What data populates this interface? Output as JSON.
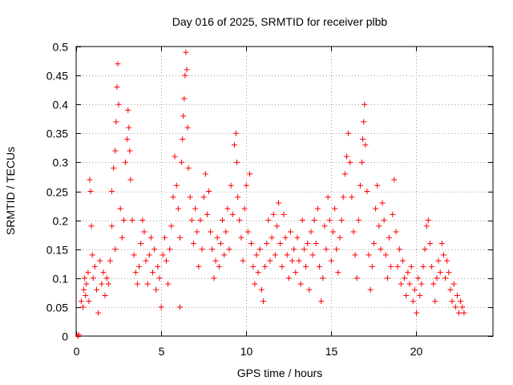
{
  "chart_data": {
    "type": "scatter",
    "title": "Day 016 of 2025, SRMTID for receiver plbb",
    "xlabel": "GPS time / hours",
    "ylabel": "SRMTID / TECUs",
    "xlim": [
      0,
      24.5
    ],
    "ylim": [
      0,
      0.5
    ],
    "xticks": [
      0,
      5,
      10,
      15,
      20
    ],
    "xtick_labels": [
      "0",
      "5",
      "10",
      "15",
      "20"
    ],
    "yticks": [
      0,
      0.05,
      0.1,
      0.15,
      0.2,
      0.25,
      0.3,
      0.35,
      0.4,
      0.45,
      0.5
    ],
    "ytick_labels": [
      "0",
      "0.05",
      "0.1",
      "0.15",
      "0.2",
      "0.25",
      "0.3",
      "0.35",
      "0.4",
      "0.45",
      "0.5"
    ],
    "grid": true,
    "marker": "+",
    "color": "#ff0000",
    "series": [
      {
        "name": "SRMTID",
        "points": [
          [
            0.1,
            0.0
          ],
          [
            0.15,
            0.002
          ],
          [
            0.3,
            0.06
          ],
          [
            0.4,
            0.05
          ],
          [
            0.45,
            0.08
          ],
          [
            0.5,
            0.1
          ],
          [
            0.55,
            0.07
          ],
          [
            0.6,
            0.09
          ],
          [
            0.7,
            0.11
          ],
          [
            0.75,
            0.06
          ],
          [
            0.8,
            0.27
          ],
          [
            0.85,
            0.25
          ],
          [
            0.9,
            0.19
          ],
          [
            0.95,
            0.14
          ],
          [
            1.0,
            0.1
          ],
          [
            1.1,
            0.12
          ],
          [
            1.2,
            0.08
          ],
          [
            1.3,
            0.04
          ],
          [
            1.4,
            0.13
          ],
          [
            1.5,
            0.09
          ],
          [
            1.6,
            0.11
          ],
          [
            1.7,
            0.07
          ],
          [
            1.8,
            0.1
          ],
          [
            1.9,
            0.09
          ],
          [
            2.0,
            0.13
          ],
          [
            2.1,
            0.19
          ],
          [
            2.1,
            0.25
          ],
          [
            2.2,
            0.29
          ],
          [
            2.3,
            0.15
          ],
          [
            2.3,
            0.32
          ],
          [
            2.35,
            0.37
          ],
          [
            2.4,
            0.43
          ],
          [
            2.45,
            0.47
          ],
          [
            2.5,
            0.4
          ],
          [
            2.6,
            0.22
          ],
          [
            2.7,
            0.17
          ],
          [
            2.8,
            0.2
          ],
          [
            2.9,
            0.3
          ],
          [
            3.0,
            0.34
          ],
          [
            3.05,
            0.39
          ],
          [
            3.1,
            0.36
          ],
          [
            3.15,
            0.32
          ],
          [
            3.2,
            0.27
          ],
          [
            3.3,
            0.2
          ],
          [
            3.4,
            0.14
          ],
          [
            3.5,
            0.11
          ],
          [
            3.6,
            0.09
          ],
          [
            3.7,
            0.12
          ],
          [
            3.8,
            0.16
          ],
          [
            3.9,
            0.2
          ],
          [
            4.0,
            0.18
          ],
          [
            4.1,
            0.13
          ],
          [
            4.2,
            0.09
          ],
          [
            4.3,
            0.14
          ],
          [
            4.4,
            0.17
          ],
          [
            4.5,
            0.11
          ],
          [
            4.6,
            0.15
          ],
          [
            4.7,
            0.08
          ],
          [
            4.8,
            0.12
          ],
          [
            4.9,
            0.1
          ],
          [
            5.0,
            0.05
          ],
          [
            5.1,
            0.14
          ],
          [
            5.2,
            0.17
          ],
          [
            5.3,
            0.13
          ],
          [
            5.4,
            0.09
          ],
          [
            5.5,
            0.15
          ],
          [
            5.6,
            0.19
          ],
          [
            5.7,
            0.24
          ],
          [
            5.8,
            0.31
          ],
          [
            5.9,
            0.26
          ],
          [
            6.0,
            0.22
          ],
          [
            6.1,
            0.17
          ],
          [
            6.1,
            0.05
          ],
          [
            6.2,
            0.3
          ],
          [
            6.25,
            0.34
          ],
          [
            6.3,
            0.38
          ],
          [
            6.35,
            0.41
          ],
          [
            6.4,
            0.45
          ],
          [
            6.45,
            0.49
          ],
          [
            6.5,
            0.46
          ],
          [
            6.55,
            0.36
          ],
          [
            6.6,
            0.29
          ],
          [
            6.7,
            0.24
          ],
          [
            6.8,
            0.2
          ],
          [
            6.9,
            0.16
          ],
          [
            7.0,
            0.22
          ],
          [
            7.1,
            0.18
          ],
          [
            7.2,
            0.12
          ],
          [
            7.3,
            0.2
          ],
          [
            7.4,
            0.15
          ],
          [
            7.5,
            0.24
          ],
          [
            7.6,
            0.28
          ],
          [
            7.7,
            0.21
          ],
          [
            7.8,
            0.25
          ],
          [
            7.9,
            0.18
          ],
          [
            8.0,
            0.15
          ],
          [
            8.1,
            0.1
          ],
          [
            8.2,
            0.13
          ],
          [
            8.3,
            0.17
          ],
          [
            8.4,
            0.12
          ],
          [
            8.5,
            0.16
          ],
          [
            8.6,
            0.2
          ],
          [
            8.7,
            0.14
          ],
          [
            8.8,
            0.18
          ],
          [
            8.9,
            0.22
          ],
          [
            9.0,
            0.15
          ],
          [
            9.1,
            0.26
          ],
          [
            9.2,
            0.21
          ],
          [
            9.3,
            0.33
          ],
          [
            9.4,
            0.35
          ],
          [
            9.45,
            0.3
          ],
          [
            9.5,
            0.24
          ],
          [
            9.6,
            0.2
          ],
          [
            9.7,
            0.17
          ],
          [
            9.8,
            0.13
          ],
          [
            9.9,
            0.22
          ],
          [
            10.0,
            0.26
          ],
          [
            10.1,
            0.18
          ],
          [
            10.2,
            0.28
          ],
          [
            10.3,
            0.16
          ],
          [
            10.4,
            0.12
          ],
          [
            10.5,
            0.09
          ],
          [
            10.6,
            0.14
          ],
          [
            10.7,
            0.11
          ],
          [
            10.8,
            0.15
          ],
          [
            10.9,
            0.08
          ],
          [
            11.0,
            0.06
          ],
          [
            11.1,
            0.12
          ],
          [
            11.2,
            0.16
          ],
          [
            11.3,
            0.2
          ],
          [
            11.4,
            0.13
          ],
          [
            11.5,
            0.17
          ],
          [
            11.6,
            0.21
          ],
          [
            11.7,
            0.14
          ],
          [
            11.8,
            0.19
          ],
          [
            11.9,
            0.23
          ],
          [
            12.0,
            0.16
          ],
          [
            12.1,
            0.12
          ],
          [
            12.2,
            0.21
          ],
          [
            12.3,
            0.17
          ],
          [
            12.4,
            0.14
          ],
          [
            12.5,
            0.1
          ],
          [
            12.6,
            0.18
          ],
          [
            12.7,
            0.13
          ],
          [
            12.8,
            0.15
          ],
          [
            12.9,
            0.11
          ],
          [
            13.0,
            0.17
          ],
          [
            13.1,
            0.13
          ],
          [
            13.2,
            0.09
          ],
          [
            13.3,
            0.2
          ],
          [
            13.4,
            0.15
          ],
          [
            13.5,
            0.12
          ],
          [
            13.6,
            0.16
          ],
          [
            13.7,
            0.08
          ],
          [
            13.8,
            0.18
          ],
          [
            13.9,
            0.14
          ],
          [
            14.0,
            0.2
          ],
          [
            14.1,
            0.16
          ],
          [
            14.2,
            0.22
          ],
          [
            14.3,
            0.12
          ],
          [
            14.4,
            0.06
          ],
          [
            14.5,
            0.1
          ],
          [
            14.6,
            0.19
          ],
          [
            14.7,
            0.15
          ],
          [
            14.8,
            0.24
          ],
          [
            14.9,
            0.2
          ],
          [
            15.0,
            0.13
          ],
          [
            15.1,
            0.18
          ],
          [
            15.2,
            0.22
          ],
          [
            15.3,
            0.15
          ],
          [
            15.4,
            0.11
          ],
          [
            15.5,
            0.17
          ],
          [
            15.6,
            0.2
          ],
          [
            15.7,
            0.24
          ],
          [
            15.8,
            0.28
          ],
          [
            15.9,
            0.31
          ],
          [
            16.0,
            0.35
          ],
          [
            16.1,
            0.3
          ],
          [
            16.2,
            0.24
          ],
          [
            16.3,
            0.18
          ],
          [
            16.4,
            0.14
          ],
          [
            16.5,
            0.1
          ],
          [
            16.6,
            0.2
          ],
          [
            16.7,
            0.26
          ],
          [
            16.8,
            0.3
          ],
          [
            16.85,
            0.34
          ],
          [
            16.9,
            0.37
          ],
          [
            16.95,
            0.4
          ],
          [
            17.0,
            0.33
          ],
          [
            17.1,
            0.25
          ],
          [
            17.2,
            0.14
          ],
          [
            17.3,
            0.08
          ],
          [
            17.4,
            0.12
          ],
          [
            17.5,
            0.16
          ],
          [
            17.6,
            0.22
          ],
          [
            17.7,
            0.26
          ],
          [
            17.8,
            0.19
          ],
          [
            17.9,
            0.15
          ],
          [
            18.0,
            0.23
          ],
          [
            18.1,
            0.2
          ],
          [
            18.2,
            0.14
          ],
          [
            18.3,
            0.1
          ],
          [
            18.4,
            0.17
          ],
          [
            18.5,
            0.12
          ],
          [
            18.6,
            0.21
          ],
          [
            18.7,
            0.27
          ],
          [
            18.8,
            0.18
          ],
          [
            18.9,
            0.12
          ],
          [
            19.0,
            0.15
          ],
          [
            19.1,
            0.09
          ],
          [
            19.2,
            0.13
          ],
          [
            19.3,
            0.1
          ],
          [
            19.4,
            0.07
          ],
          [
            19.5,
            0.11
          ],
          [
            19.6,
            0.09
          ],
          [
            19.7,
            0.12
          ],
          [
            19.8,
            0.06
          ],
          [
            19.9,
            0.08
          ],
          [
            20.0,
            0.04
          ],
          [
            20.1,
            0.1
          ],
          [
            20.2,
            0.07
          ],
          [
            20.3,
            0.09
          ],
          [
            20.4,
            0.12
          ],
          [
            20.5,
            0.15
          ],
          [
            20.6,
            0.19
          ],
          [
            20.7,
            0.2
          ],
          [
            20.8,
            0.16
          ],
          [
            20.9,
            0.12
          ],
          [
            21.0,
            0.09
          ],
          [
            21.1,
            0.06
          ],
          [
            21.2,
            0.1
          ],
          [
            21.3,
            0.13
          ],
          [
            21.4,
            0.11
          ],
          [
            21.5,
            0.16
          ],
          [
            21.6,
            0.14
          ],
          [
            21.7,
            0.1
          ],
          [
            21.8,
            0.13
          ],
          [
            21.9,
            0.11
          ],
          [
            22.0,
            0.08
          ],
          [
            22.1,
            0.06
          ],
          [
            22.2,
            0.09
          ],
          [
            22.3,
            0.05
          ],
          [
            22.4,
            0.07
          ],
          [
            22.5,
            0.04
          ],
          [
            22.6,
            0.06
          ],
          [
            22.7,
            0.05
          ],
          [
            22.8,
            0.04
          ]
        ]
      }
    ]
  }
}
